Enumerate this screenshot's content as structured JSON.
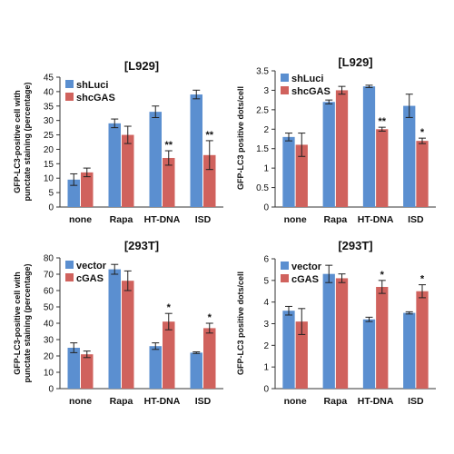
{
  "colors": {
    "series_a": "#5b8fd0",
    "series_b": "#d0625d",
    "axis": "#333333"
  },
  "chart_data": [
    {
      "type": "bar",
      "title": "[L929]",
      "ylabel": [
        "GFP-LC3-positive cell with",
        "punctate staining (percentage)"
      ],
      "categories": [
        "none",
        "Rapa",
        "HT-DNA",
        "ISD"
      ],
      "ylim": [
        0,
        45
      ],
      "yticks": [
        "0",
        "5",
        "10",
        "15",
        "20",
        "25",
        "30",
        "35",
        "40",
        "45"
      ],
      "legend_position": "top-left",
      "series": [
        {
          "name": "shLuci",
          "values": [
            9.5,
            29,
            33,
            39
          ],
          "errors": [
            2,
            1.5,
            2,
            1.5
          ]
        },
        {
          "name": "shcGAS",
          "values": [
            12,
            25,
            17,
            18
          ],
          "errors": [
            1.5,
            3,
            2.5,
            5
          ]
        }
      ],
      "annotations": [
        {
          "category": "HT-DNA",
          "series": "shcGAS",
          "text": "**"
        },
        {
          "category": "ISD",
          "series": "shcGAS",
          "text": "**"
        }
      ]
    },
    {
      "type": "bar",
      "title": "[L929]",
      "ylabel": [
        "GFP-LC3 positive dots/cell"
      ],
      "categories": [
        "none",
        "Rapa",
        "HT-DNA",
        "ISD"
      ],
      "ylim": [
        0,
        3.5
      ],
      "yticks": [
        "0",
        "0.5",
        "1",
        "1.5",
        "2",
        "2.5",
        "3",
        "3.5"
      ],
      "legend_position": "top-left",
      "series": [
        {
          "name": "shLuci",
          "values": [
            1.8,
            2.7,
            3.1,
            2.6
          ],
          "errors": [
            0.1,
            0.05,
            0.03,
            0.3
          ]
        },
        {
          "name": "shcGAS",
          "values": [
            1.6,
            3.0,
            2.0,
            1.7
          ],
          "errors": [
            0.3,
            0.1,
            0.05,
            0.07
          ]
        }
      ],
      "annotations": [
        {
          "category": "HT-DNA",
          "series": "shcGAS",
          "text": "**"
        },
        {
          "category": "ISD",
          "series": "shcGAS",
          "text": "*"
        }
      ]
    },
    {
      "type": "bar",
      "title": "[293T]",
      "ylabel": [
        "GFP-LC3-positive cell with",
        "punctate staining (percentage)"
      ],
      "categories": [
        "none",
        "Rapa",
        "HT-DNA",
        "ISD"
      ],
      "ylim": [
        0,
        80
      ],
      "yticks": [
        "0",
        "10",
        "20",
        "30",
        "40",
        "50",
        "60",
        "70",
        "80"
      ],
      "legend_position": "top-left",
      "series": [
        {
          "name": "vector",
          "values": [
            25,
            73,
            26,
            22
          ],
          "errors": [
            3,
            3,
            2,
            0.5
          ]
        },
        {
          "name": "cGAS",
          "values": [
            21,
            66,
            41,
            37
          ],
          "errors": [
            2,
            6,
            5,
            3
          ]
        }
      ],
      "annotations": [
        {
          "category": "HT-DNA",
          "series": "cGAS",
          "text": "*"
        },
        {
          "category": "ISD",
          "series": "cGAS",
          "text": "*"
        }
      ]
    },
    {
      "type": "bar",
      "title": "[293T]",
      "ylabel": [
        "GFP-LC3 positive dots/cell"
      ],
      "categories": [
        "none",
        "Rapa",
        "HT-DNA",
        "ISD"
      ],
      "ylim": [
        0,
        6
      ],
      "yticks": [
        "0",
        "1",
        "2",
        "3",
        "4",
        "5",
        "6"
      ],
      "legend_position": "top-left",
      "series": [
        {
          "name": "vector",
          "values": [
            3.6,
            5.3,
            3.2,
            3.5
          ],
          "errors": [
            0.2,
            0.4,
            0.1,
            0.05
          ]
        },
        {
          "name": "cGAS",
          "values": [
            3.1,
            5.1,
            4.7,
            4.5
          ],
          "errors": [
            0.6,
            0.2,
            0.3,
            0.3
          ]
        }
      ],
      "annotations": [
        {
          "category": "HT-DNA",
          "series": "cGAS",
          "text": "*"
        },
        {
          "category": "ISD",
          "series": "cGAS",
          "text": "*"
        }
      ]
    }
  ]
}
